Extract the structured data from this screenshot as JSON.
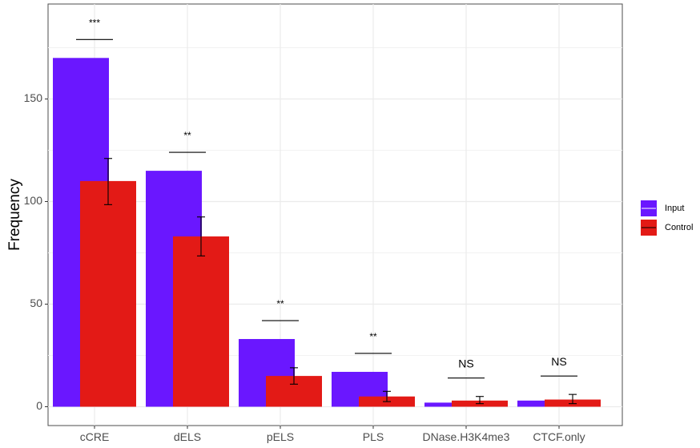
{
  "chart_data": {
    "type": "bar",
    "title": "",
    "xlabel": "",
    "ylabel": "Frequency",
    "ylim": [
      -7,
      196
    ],
    "yticks": [
      0,
      50,
      100,
      150
    ],
    "grid": true,
    "legend_position": "right",
    "categories": [
      "cCRE",
      "dELS",
      "pELS",
      "PLS",
      "DNase.H3K4me3",
      "CTCF.only"
    ],
    "series": [
      {
        "name": "Input",
        "color": "#6a17ff",
        "values": [
          170,
          115,
          33,
          17,
          2,
          3
        ]
      },
      {
        "name": "Control",
        "color": "#e31a16",
        "values": [
          110,
          83,
          15,
          5,
          3,
          3.5
        ],
        "error_low": [
          98.5,
          73.5,
          11,
          2.5,
          1.5,
          1.5
        ],
        "error_high": [
          121,
          92.5,
          19,
          7.5,
          5,
          6
        ]
      }
    ],
    "significance": [
      "***",
      "**",
      "**",
      "**",
      "NS",
      "NS"
    ]
  }
}
